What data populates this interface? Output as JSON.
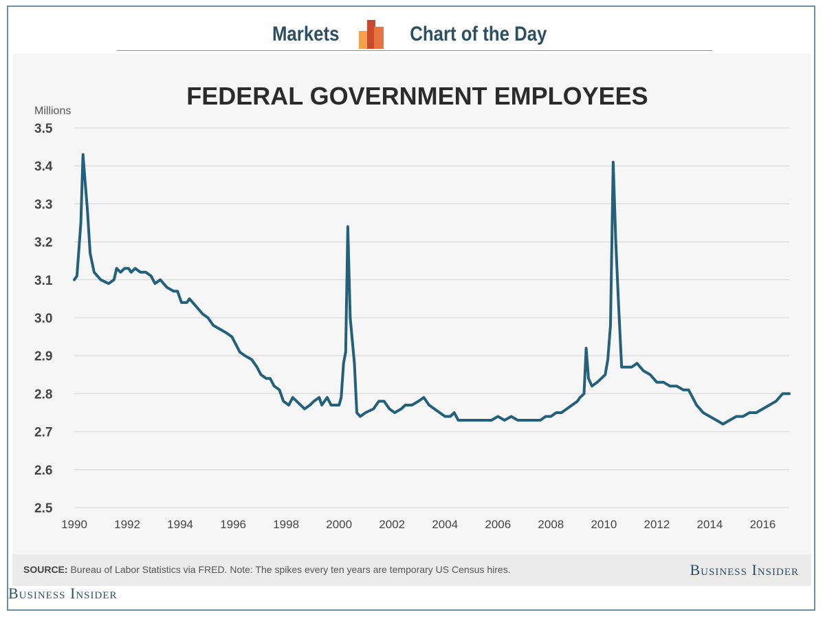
{
  "header": {
    "left_label": "Markets",
    "right_label": "Chart of the Day",
    "logo_colors": [
      "#e8733f",
      "#f3a04f",
      "#c84a2d"
    ]
  },
  "footer": {
    "source_label": "SOURCE:",
    "source_text": "Bureau of Labor Statistics via FRED. Note: The spikes every ten years are temporary US Census hires.",
    "brand_right": "Business Insider",
    "brand_bottom": "Business Insider"
  },
  "colors": {
    "line": "#23607a",
    "grid": "#dddddd",
    "title": "#2b2b2b",
    "tick": "#444444",
    "panel": "#f6f6f6",
    "accent_rule": "#d9755a"
  },
  "chart_data": {
    "type": "line",
    "title": "FEDERAL GOVERNMENT EMPLOYEES",
    "ylabel": "Millions",
    "xlabel": "",
    "ylim": [
      2.5,
      3.5
    ],
    "xlim": [
      1990,
      2017
    ],
    "yticks": [
      "3.5",
      "3.4",
      "3.3",
      "3.2",
      "3.1",
      "3.0",
      "2.9",
      "2.8",
      "2.7",
      "2.6",
      "2.5"
    ],
    "xticks": [
      "1990",
      "1992",
      "1994",
      "1996",
      "1998",
      "2000",
      "2002",
      "2004",
      "2006",
      "2008",
      "2010",
      "2012",
      "2014",
      "2016"
    ],
    "grid": true,
    "series": [
      {
        "values": [
          [
            1990.0,
            3.1
          ],
          [
            1990.1,
            3.11
          ],
          [
            1990.25,
            3.25
          ],
          [
            1990.33,
            3.43
          ],
          [
            1990.42,
            3.35
          ],
          [
            1990.5,
            3.28
          ],
          [
            1990.6,
            3.17
          ],
          [
            1990.75,
            3.12
          ],
          [
            1991.0,
            3.1
          ],
          [
            1991.3,
            3.09
          ],
          [
            1991.5,
            3.1
          ],
          [
            1991.6,
            3.13
          ],
          [
            1991.75,
            3.12
          ],
          [
            1991.9,
            3.13
          ],
          [
            1992.05,
            3.13
          ],
          [
            1992.15,
            3.12
          ],
          [
            1992.3,
            3.13
          ],
          [
            1992.5,
            3.12
          ],
          [
            1992.7,
            3.12
          ],
          [
            1992.9,
            3.11
          ],
          [
            1993.05,
            3.09
          ],
          [
            1993.25,
            3.1
          ],
          [
            1993.5,
            3.08
          ],
          [
            1993.75,
            3.07
          ],
          [
            1993.9,
            3.07
          ],
          [
            1994.05,
            3.04
          ],
          [
            1994.25,
            3.04
          ],
          [
            1994.35,
            3.05
          ],
          [
            1994.6,
            3.03
          ],
          [
            1994.85,
            3.01
          ],
          [
            1995.05,
            3.0
          ],
          [
            1995.25,
            2.98
          ],
          [
            1995.5,
            2.97
          ],
          [
            1995.75,
            2.96
          ],
          [
            1995.95,
            2.95
          ],
          [
            1996.1,
            2.93
          ],
          [
            1996.25,
            2.91
          ],
          [
            1996.45,
            2.9
          ],
          [
            1996.7,
            2.89
          ],
          [
            1996.9,
            2.87
          ],
          [
            1997.05,
            2.85
          ],
          [
            1997.25,
            2.84
          ],
          [
            1997.4,
            2.84
          ],
          [
            1997.55,
            2.82
          ],
          [
            1997.75,
            2.81
          ],
          [
            1997.9,
            2.78
          ],
          [
            1998.1,
            2.77
          ],
          [
            1998.25,
            2.79
          ],
          [
            1998.4,
            2.78
          ],
          [
            1998.55,
            2.77
          ],
          [
            1998.7,
            2.76
          ],
          [
            1998.9,
            2.77
          ],
          [
            1999.05,
            2.78
          ],
          [
            1999.25,
            2.79
          ],
          [
            1999.35,
            2.77
          ],
          [
            1999.55,
            2.79
          ],
          [
            1999.7,
            2.77
          ],
          [
            1999.9,
            2.77
          ],
          [
            2000.0,
            2.77
          ],
          [
            2000.08,
            2.79
          ],
          [
            2000.17,
            2.88
          ],
          [
            2000.25,
            2.91
          ],
          [
            2000.33,
            3.24
          ],
          [
            2000.42,
            3.0
          ],
          [
            2000.58,
            2.88
          ],
          [
            2000.67,
            2.75
          ],
          [
            2000.8,
            2.74
          ],
          [
            2001.0,
            2.75
          ],
          [
            2001.3,
            2.76
          ],
          [
            2001.5,
            2.78
          ],
          [
            2001.7,
            2.78
          ],
          [
            2001.9,
            2.76
          ],
          [
            2002.1,
            2.75
          ],
          [
            2002.35,
            2.76
          ],
          [
            2002.5,
            2.77
          ],
          [
            2002.75,
            2.77
          ],
          [
            2003.0,
            2.78
          ],
          [
            2003.2,
            2.79
          ],
          [
            2003.4,
            2.77
          ],
          [
            2003.6,
            2.76
          ],
          [
            2003.8,
            2.75
          ],
          [
            2004.0,
            2.74
          ],
          [
            2004.2,
            2.74
          ],
          [
            2004.35,
            2.75
          ],
          [
            2004.5,
            2.73
          ],
          [
            2004.75,
            2.73
          ],
          [
            2005.0,
            2.73
          ],
          [
            2005.3,
            2.73
          ],
          [
            2005.5,
            2.73
          ],
          [
            2005.75,
            2.73
          ],
          [
            2006.0,
            2.74
          ],
          [
            2006.25,
            2.73
          ],
          [
            2006.5,
            2.74
          ],
          [
            2006.75,
            2.73
          ],
          [
            2007.0,
            2.73
          ],
          [
            2007.3,
            2.73
          ],
          [
            2007.6,
            2.73
          ],
          [
            2007.8,
            2.74
          ],
          [
            2008.0,
            2.74
          ],
          [
            2008.2,
            2.75
          ],
          [
            2008.4,
            2.75
          ],
          [
            2008.6,
            2.76
          ],
          [
            2008.8,
            2.77
          ],
          [
            2009.0,
            2.78
          ],
          [
            2009.1,
            2.79
          ],
          [
            2009.25,
            2.8
          ],
          [
            2009.33,
            2.92
          ],
          [
            2009.42,
            2.84
          ],
          [
            2009.55,
            2.82
          ],
          [
            2009.75,
            2.83
          ],
          [
            2009.9,
            2.84
          ],
          [
            2010.05,
            2.85
          ],
          [
            2010.15,
            2.89
          ],
          [
            2010.25,
            2.98
          ],
          [
            2010.35,
            3.41
          ],
          [
            2010.45,
            3.2
          ],
          [
            2010.55,
            3.04
          ],
          [
            2010.67,
            2.87
          ],
          [
            2010.85,
            2.87
          ],
          [
            2011.05,
            2.87
          ],
          [
            2011.25,
            2.88
          ],
          [
            2011.5,
            2.86
          ],
          [
            2011.75,
            2.85
          ],
          [
            2012.0,
            2.83
          ],
          [
            2012.25,
            2.83
          ],
          [
            2012.5,
            2.82
          ],
          [
            2012.75,
            2.82
          ],
          [
            2013.0,
            2.81
          ],
          [
            2013.2,
            2.81
          ],
          [
            2013.35,
            2.79
          ],
          [
            2013.5,
            2.77
          ],
          [
            2013.75,
            2.75
          ],
          [
            2014.0,
            2.74
          ],
          [
            2014.25,
            2.73
          ],
          [
            2014.5,
            2.72
          ],
          [
            2014.75,
            2.73
          ],
          [
            2015.0,
            2.74
          ],
          [
            2015.25,
            2.74
          ],
          [
            2015.5,
            2.75
          ],
          [
            2015.75,
            2.75
          ],
          [
            2016.0,
            2.76
          ],
          [
            2016.25,
            2.77
          ],
          [
            2016.5,
            2.78
          ],
          [
            2016.75,
            2.8
          ],
          [
            2016.95,
            2.8
          ],
          [
            2017.0,
            2.8
          ]
        ]
      }
    ]
  }
}
